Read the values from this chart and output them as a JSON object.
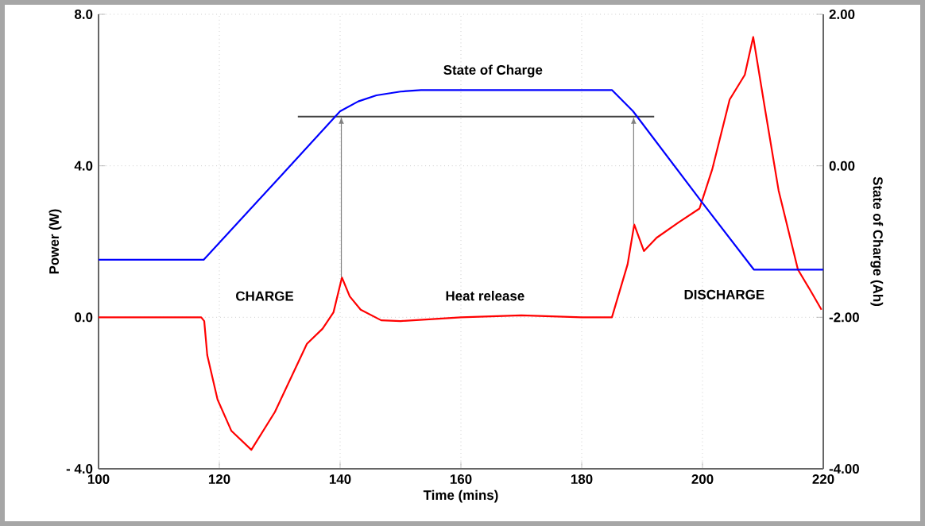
{
  "chart_data": {
    "type": "line",
    "xlabel": "Time (mins)",
    "ylabel": "Power (W)",
    "y2label": "State of Charge (Ah)",
    "xlim": [
      100,
      220
    ],
    "xticks": [
      100,
      120,
      140,
      160,
      180,
      200,
      220
    ],
    "ylim": [
      -4,
      8
    ],
    "yticks": [
      {
        "value": -4,
        "label": "- 4.0"
      },
      {
        "value": 0,
        "label": "0.0"
      },
      {
        "value": 4,
        "label": "4.0"
      },
      {
        "value": 8,
        "label": "8.0"
      }
    ],
    "y2lim": [
      -4,
      2
    ],
    "y2ticks": [
      {
        "value": -4,
        "label": "-4.00"
      },
      {
        "value": -2,
        "label": "-2.00"
      },
      {
        "value": 0,
        "label": "0.00"
      },
      {
        "value": 2,
        "label": "2.00"
      }
    ],
    "grid": true,
    "series": [
      {
        "color": "#0000ff",
        "axis": "y2",
        "x": [
          100,
          117.4,
          130,
          140,
          143,
          146,
          150,
          153.4,
          185,
          188.5,
          200,
          208.5,
          220
        ],
        "values": [
          -1.24,
          -1.24,
          -0.15,
          0.72,
          0.85,
          0.93,
          0.98,
          1.0,
          1.0,
          0.72,
          -0.49,
          -1.37,
          -1.37
        ]
      },
      {
        "color": "#404040",
        "x": [
          133,
          192
        ],
        "values": [
          5.3,
          5.3
        ]
      },
      {
        "color": "#ff0000",
        "x": [
          100,
          117,
          117.5,
          118,
          119.7,
          122,
          125.3,
          129.2,
          134.5,
          137.1,
          138.9,
          140.3,
          141.6,
          143.4,
          146.8,
          150,
          160,
          170,
          180,
          185,
          187.6,
          188.7,
          190.3,
          192.4,
          196,
          199.5,
          201.6,
          204.5,
          207,
          208.4,
          210.4,
          212.6,
          215.8,
          217.9,
          219.7
        ],
        "values": [
          0,
          0,
          -0.1,
          -1.0,
          -2.17,
          -3.0,
          -3.5,
          -2.5,
          -0.7,
          -0.3,
          0.13,
          1.05,
          0.55,
          0.2,
          -0.08,
          -0.1,
          0,
          0.05,
          0,
          0,
          1.4,
          2.45,
          1.75,
          2.1,
          2.5,
          2.87,
          3.9,
          5.75,
          6.4,
          7.4,
          5.45,
          3.35,
          1.26,
          0.7,
          0.2
        ]
      }
    ],
    "annotations": [
      "State of Charge",
      "Heat release",
      "CHARGE",
      "DISCHARGE"
    ]
  }
}
